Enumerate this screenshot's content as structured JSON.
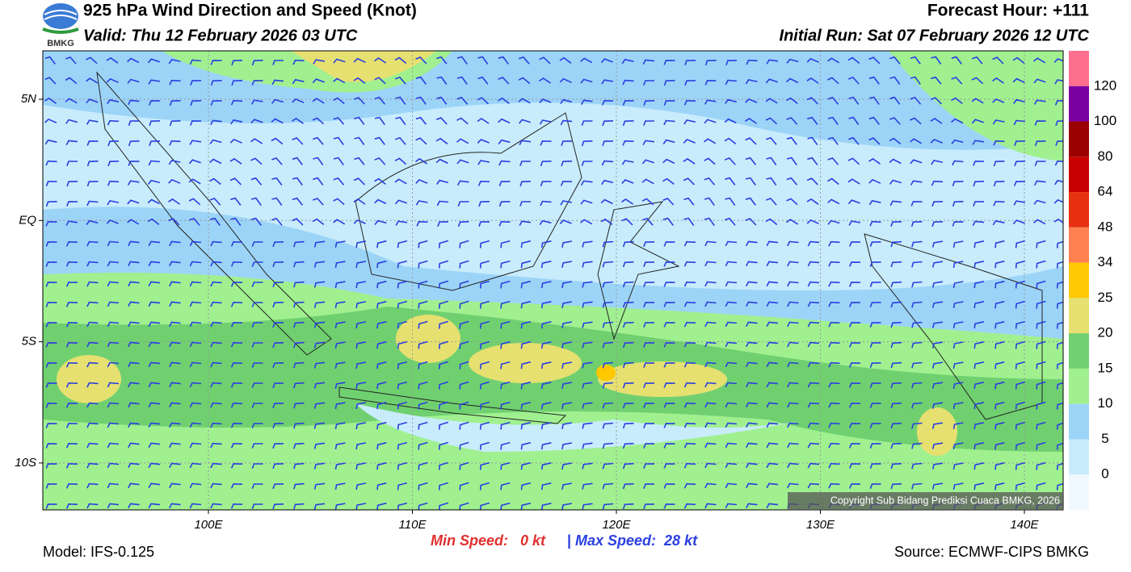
{
  "header": {
    "logo": "BMKG",
    "title": "925 hPa Wind Direction and Speed (Knot)",
    "valid": "Valid: Thu 12 February 2026 03 UTC",
    "forecast_hour": "Forecast Hour: +111",
    "initial_run": "Initial Run: Sat 07 February 2026 12 UTC"
  },
  "map": {
    "lat_labels": [
      "5N",
      "EQ",
      "5S",
      "10S"
    ],
    "lon_labels": [
      "100E",
      "110E",
      "120E",
      "130E",
      "140E"
    ],
    "copyright": "Copyright Sub Bidang Prediksi Cuaca BMKG, 2026"
  },
  "colorbar": {
    "labels": [
      "120",
      "100",
      "80",
      "64",
      "48",
      "34",
      "25",
      "20",
      "15",
      "10",
      "5",
      "0"
    ],
    "colors": [
      "#ff6f8f",
      "#7a00a0",
      "#9b0000",
      "#c80000",
      "#e63010",
      "#ff8050",
      "#ffc800",
      "#e6e070",
      "#70d070",
      "#a0f090",
      "#9cd4f8",
      "#c8ecfc",
      "#f0f8ff"
    ]
  },
  "footer": {
    "min_speed": "Min Speed:   0 kt",
    "separator": "|",
    "max_speed": "Max Speed:  28 kt",
    "model": "Model: IFS-0.125",
    "source": "Source: ECMWF-CIPS BMKG"
  }
}
